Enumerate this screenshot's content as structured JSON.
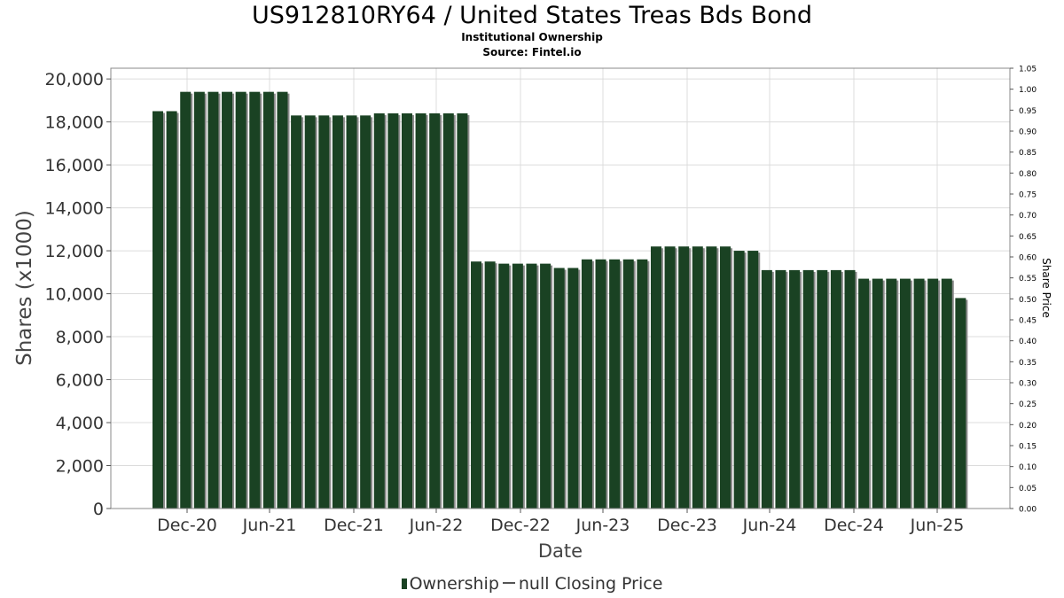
{
  "title": "US912810RY64 / United States Treas Bds Bond",
  "subtitle": "Institutional Ownership",
  "source": "Source: Fintel.io",
  "legend": {
    "ownership_label": "Ownership",
    "price_label": "null Closing Price"
  },
  "colors": {
    "bar": "#1a4223",
    "bar_shadow": "#8a8a8a",
    "grid": "#dcdcdc",
    "axis": "#555555"
  },
  "chart_data": {
    "type": "bar",
    "title": "US912810RY64 / United States Treas Bds Bond",
    "xlabel": "Date",
    "ylabel": "Shares (x1000)",
    "y2label": "Share Price",
    "ylim": [
      0,
      20500
    ],
    "y2lim": [
      0,
      1.05
    ],
    "yticks": [
      "0",
      "2,000",
      "4,000",
      "6,000",
      "8,000",
      "10,000",
      "12,000",
      "14,000",
      "16,000",
      "18,000",
      "20,000"
    ],
    "y2ticks": [
      "0.00",
      "0.05",
      "0.10",
      "0.15",
      "0.20",
      "0.25",
      "0.30",
      "0.35",
      "0.40",
      "0.45",
      "0.50",
      "0.55",
      "0.60",
      "0.65",
      "0.70",
      "0.75",
      "0.80",
      "0.85",
      "0.90",
      "0.95",
      "1.00",
      "1.05"
    ],
    "xticks": [
      "Dec-20",
      "Jun-21",
      "Dec-21",
      "Jun-22",
      "Dec-22",
      "Jun-23",
      "Dec-23",
      "Jun-24",
      "Dec-24",
      "Jun-25"
    ],
    "grid": true,
    "legend_position": "bottom",
    "series": [
      {
        "name": "Ownership",
        "values": [
          18500,
          18500,
          19400,
          19400,
          19400,
          19400,
          19400,
          19400,
          19400,
          19400,
          18300,
          18300,
          18300,
          18300,
          18300,
          18300,
          18400,
          18400,
          18400,
          18400,
          18400,
          18400,
          18400,
          11500,
          11500,
          11400,
          11400,
          11400,
          11400,
          11200,
          11200,
          11600,
          11600,
          11600,
          11600,
          11600,
          12200,
          12200,
          12200,
          12200,
          12200,
          12200,
          12000,
          12000,
          11100,
          11100,
          11100,
          11100,
          11100,
          11100,
          11100,
          10700,
          10700,
          10700,
          10700,
          10700,
          10700,
          10700,
          9800
        ]
      }
    ]
  }
}
